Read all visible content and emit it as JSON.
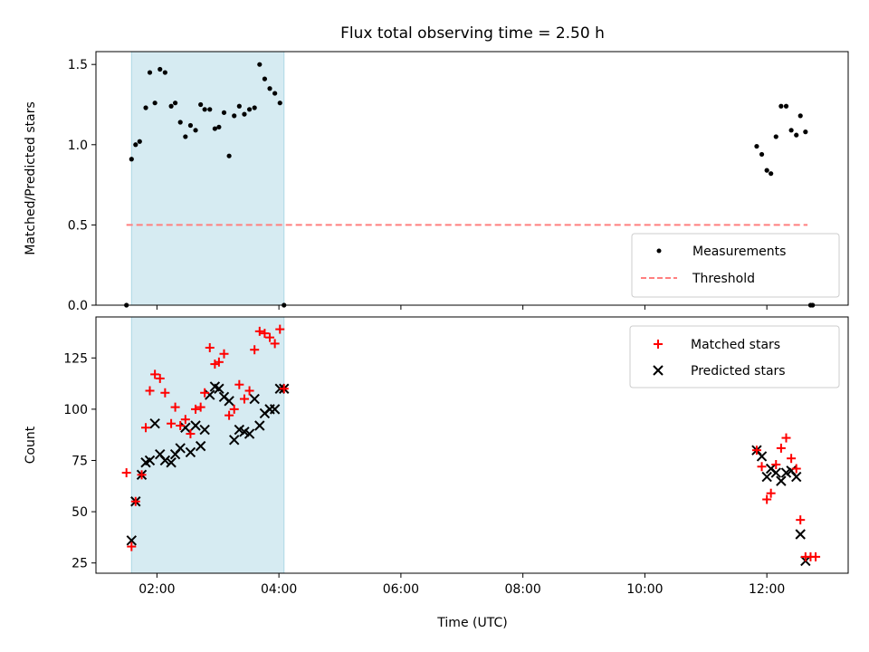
{
  "figure": {
    "title": "Flux total observing time = 2.50 h",
    "xlabel": "Time (UTC)"
  },
  "chart_data": [
    {
      "type": "scatter",
      "ylabel": "Matched/Predicted stars",
      "xlim": [
        "01:00",
        "13:20"
      ],
      "ylim": [
        0,
        1.58
      ],
      "yticks": [
        0.0,
        0.5,
        1.0,
        1.5
      ],
      "ytick_labels": [
        "0.0",
        "0.5",
        "1.0",
        "1.5"
      ],
      "shaded_interval": [
        "01:35",
        "04:05"
      ],
      "shade_color": "#add8e6",
      "legend_position": "lower-right",
      "series": [
        {
          "name": "Measurements",
          "marker": "dot",
          "color": "#000000",
          "x": [
            "01:30",
            "01:35",
            "01:39",
            "01:43",
            "01:49",
            "01:53",
            "01:58",
            "02:03",
            "02:08",
            "02:14",
            "02:18",
            "02:23",
            "02:28",
            "02:33",
            "02:38",
            "02:43",
            "02:47",
            "02:52",
            "02:57",
            "03:01",
            "03:06",
            "03:11",
            "03:16",
            "03:21",
            "03:26",
            "03:31",
            "03:36",
            "03:41",
            "03:46",
            "03:51",
            "03:56",
            "04:01",
            "04:05",
            "11:50",
            "11:55",
            "12:00",
            "12:04",
            "12:09",
            "12:14",
            "12:19",
            "12:24",
            "12:29",
            "12:33",
            "12:38",
            "12:43",
            "12:45"
          ],
          "y": [
            0.0,
            0.91,
            1.0,
            1.02,
            1.23,
            1.45,
            1.26,
            1.47,
            1.45,
            1.24,
            1.26,
            1.14,
            1.05,
            1.12,
            1.09,
            1.25,
            1.22,
            1.22,
            1.1,
            1.11,
            1.2,
            0.93,
            1.18,
            1.24,
            1.19,
            1.22,
            1.23,
            1.5,
            1.41,
            1.35,
            1.32,
            1.26,
            0.0,
            0.99,
            0.94,
            0.84,
            0.82,
            1.05,
            1.24,
            1.24,
            1.09,
            1.06,
            1.18,
            1.08,
            0.0,
            0.0
          ]
        },
        {
          "name": "Threshold",
          "marker": "dashed-line",
          "color": "#ff7f7f",
          "x": [
            "01:30",
            "12:40"
          ],
          "y": [
            0.5,
            0.5
          ]
        }
      ]
    },
    {
      "type": "scatter",
      "ylabel": "Count",
      "xlim": [
        "01:00",
        "13:20"
      ],
      "ylim": [
        20,
        145
      ],
      "yticks": [
        25,
        50,
        75,
        100,
        125
      ],
      "ytick_labels": [
        "25",
        "50",
        "75",
        "100",
        "125"
      ],
      "xtick_labels": [
        "02:00",
        "04:00",
        "06:00",
        "08:00",
        "10:00",
        "12:00"
      ],
      "shaded_interval": [
        "01:35",
        "04:05"
      ],
      "shade_color": "#add8e6",
      "legend_position": "upper-right",
      "series": [
        {
          "name": "Matched stars",
          "marker": "plus",
          "color": "#ff0000",
          "x": [
            "01:30",
            "01:35",
            "01:39",
            "01:45",
            "01:49",
            "01:53",
            "01:58",
            "02:03",
            "02:08",
            "02:14",
            "02:18",
            "02:23",
            "02:28",
            "02:33",
            "02:38",
            "02:43",
            "02:47",
            "02:52",
            "02:57",
            "03:01",
            "03:06",
            "03:11",
            "03:16",
            "03:21",
            "03:26",
            "03:31",
            "03:36",
            "03:41",
            "03:46",
            "03:51",
            "03:56",
            "04:01",
            "04:05",
            "11:50",
            "11:55",
            "12:00",
            "12:04",
            "12:09",
            "12:14",
            "12:19",
            "12:24",
            "12:29",
            "12:33",
            "12:38",
            "12:43",
            "12:48"
          ],
          "y": [
            69,
            33,
            55,
            68,
            91,
            109,
            117,
            115,
            108,
            93,
            101,
            92,
            95,
            88,
            100,
            101,
            108,
            130,
            122,
            123,
            127,
            97,
            100,
            112,
            105,
            109,
            129,
            138,
            137,
            135,
            132,
            139,
            110,
            80,
            72,
            56,
            59,
            73,
            81,
            86,
            76,
            71,
            46,
            28,
            28,
            28
          ]
        },
        {
          "name": "Predicted stars",
          "marker": "x",
          "color": "#000000",
          "x": [
            "01:35",
            "01:39",
            "01:45",
            "01:49",
            "01:53",
            "01:58",
            "02:03",
            "02:08",
            "02:14",
            "02:18",
            "02:23",
            "02:28",
            "02:33",
            "02:38",
            "02:43",
            "02:47",
            "02:52",
            "02:57",
            "03:01",
            "03:06",
            "03:11",
            "03:16",
            "03:21",
            "03:26",
            "03:31",
            "03:36",
            "03:41",
            "03:46",
            "03:51",
            "03:56",
            "04:01",
            "04:05",
            "11:50",
            "11:55",
            "12:00",
            "12:04",
            "12:09",
            "12:14",
            "12:19",
            "12:24",
            "12:29",
            "12:33",
            "12:38"
          ],
          "y": [
            36,
            55,
            68,
            74,
            75,
            93,
            78,
            75,
            74,
            78,
            81,
            91,
            79,
            92,
            82,
            90,
            107,
            111,
            110,
            106,
            104,
            85,
            90,
            89,
            88,
            105,
            92,
            98,
            100,
            100,
            110,
            110,
            80,
            77,
            67,
            71,
            69,
            65,
            69,
            70,
            67,
            39,
            26
          ]
        }
      ]
    }
  ]
}
